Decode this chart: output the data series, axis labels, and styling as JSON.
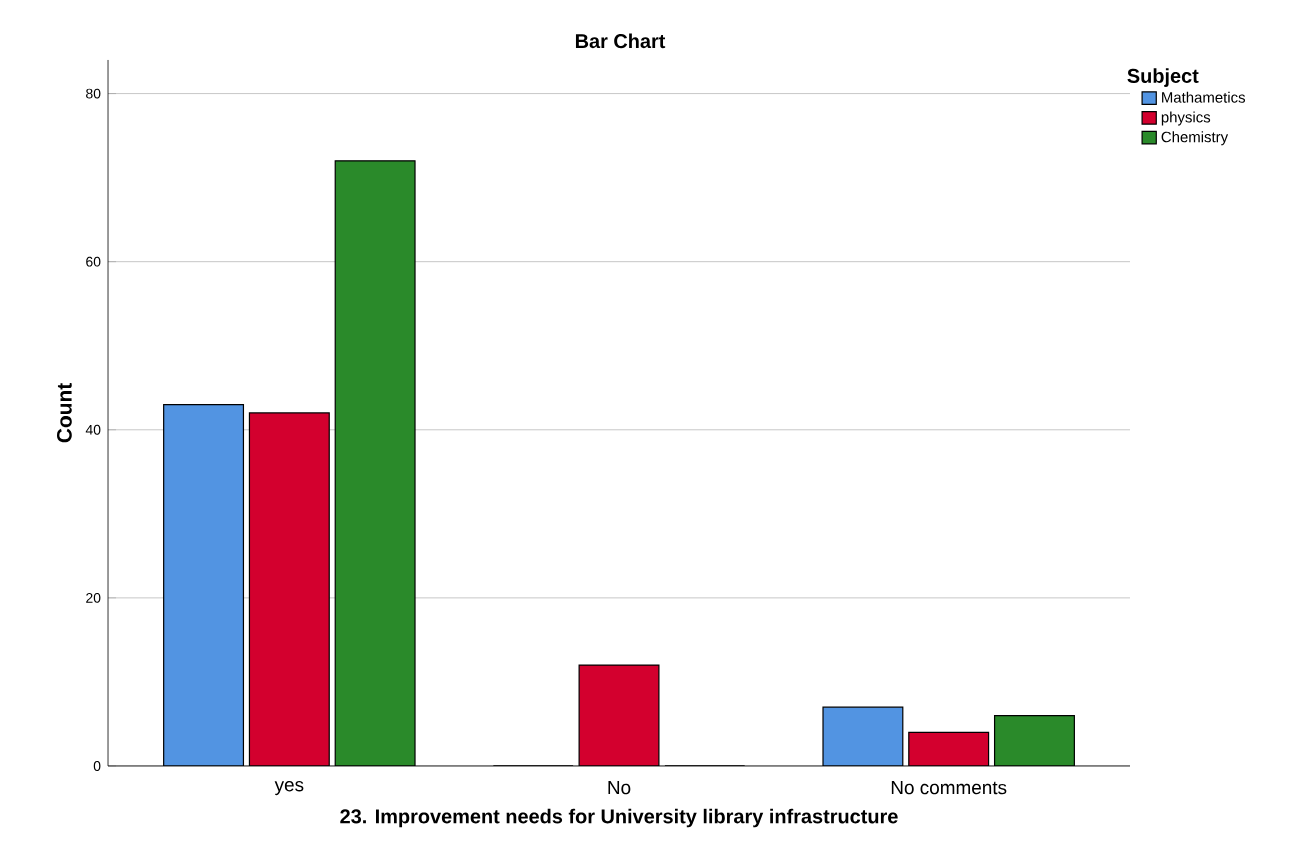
{
  "chart_data": {
    "type": "bar",
    "title": "Bar Chart",
    "xlabel": "23. Improvement needs for University library infrastructure",
    "ylabel": "Count",
    "legend_title": "Subject",
    "categories": [
      "yes",
      "No",
      "No comments"
    ],
    "series": [
      {
        "name": "Mathametics",
        "color": "#5294e2",
        "values": [
          43,
          0,
          7
        ]
      },
      {
        "name": "physics",
        "color": "#d3002e",
        "values": [
          42,
          12,
          4
        ]
      },
      {
        "name": "Chemistry",
        "color": "#2a8a2a",
        "values": [
          72,
          0,
          6
        ]
      }
    ],
    "ylim": [
      0,
      84
    ],
    "yticks": [
      0,
      20,
      40,
      60,
      80
    ],
    "grid": "y",
    "legend": "top right"
  }
}
